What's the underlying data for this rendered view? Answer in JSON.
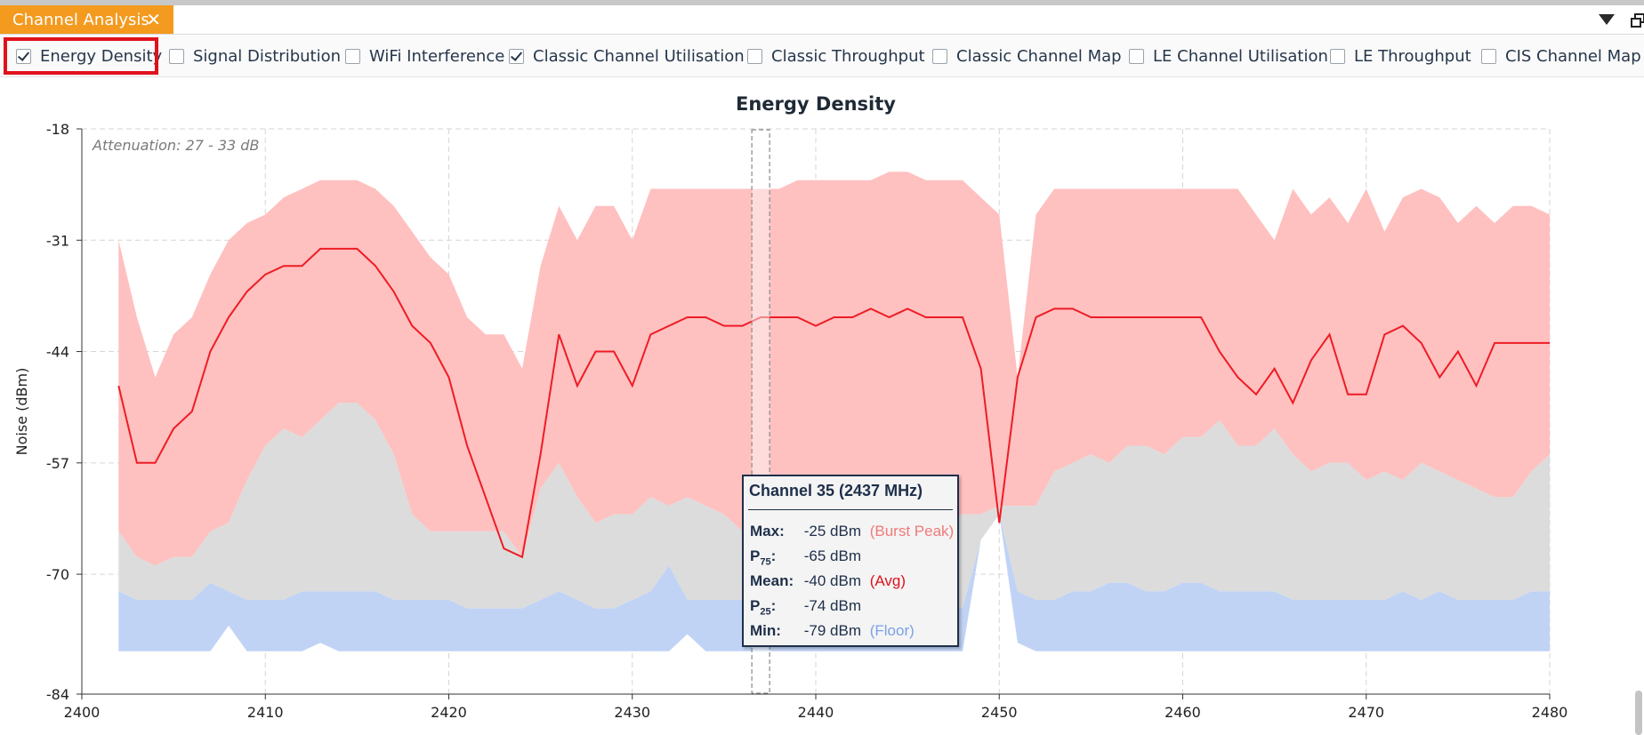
{
  "tab": {
    "title": "Channel Analysis",
    "close_glyph": "✕"
  },
  "toolbar": {
    "checkboxes": [
      {
        "label": "Energy Density",
        "checked": true
      },
      {
        "label": "Signal Distribution",
        "checked": false
      },
      {
        "label": "WiFi Interference",
        "checked": false
      },
      {
        "label": "Classic Channel Utilisation",
        "checked": true
      },
      {
        "label": "Classic Throughput",
        "checked": false
      },
      {
        "label": "Classic Channel Map",
        "checked": false
      },
      {
        "label": "LE Channel Utilisation",
        "checked": false
      },
      {
        "label": "LE Throughput",
        "checked": false
      },
      {
        "label": "CIS Channel Map",
        "checked": false
      }
    ]
  },
  "icons": {
    "menu": "dropdown-arrow-icon",
    "restore": "restore-window-icon",
    "close": "close-icon"
  },
  "colors": {
    "tab": "#f39a1f",
    "highlight": "#e0111b",
    "peak_band": "#ffc0c0",
    "p_band": "#dcdcdc",
    "floor_band": "#c0d3f5",
    "mean_line": "#ee1c24",
    "floor_text": "#7aa2e8",
    "peak_text": "#f07a7a"
  },
  "chart_data": {
    "type": "area",
    "title": "Energy Density",
    "xlabel": "",
    "ylabel": "Noise (dBm)",
    "xlim": [
      2400,
      2480
    ],
    "ylim": [
      -84,
      -18
    ],
    "xticks": [
      2400,
      2410,
      2420,
      2430,
      2440,
      2450,
      2460,
      2470,
      2480
    ],
    "yticks": [
      -84,
      -70,
      -57,
      -44,
      -31,
      -18
    ],
    "grid": true,
    "annotation": "Attenuation: 27 - 33 dB",
    "x": [
      2402,
      2403,
      2404,
      2405,
      2406,
      2407,
      2408,
      2409,
      2410,
      2411,
      2412,
      2413,
      2414,
      2415,
      2416,
      2417,
      2418,
      2419,
      2420,
      2421,
      2422,
      2423,
      2424,
      2425,
      2426,
      2427,
      2428,
      2429,
      2430,
      2431,
      2432,
      2433,
      2434,
      2435,
      2436,
      2437,
      2438,
      2439,
      2440,
      2441,
      2442,
      2443,
      2444,
      2445,
      2446,
      2447,
      2448,
      2449,
      2450,
      2451,
      2452,
      2453,
      2454,
      2455,
      2456,
      2457,
      2458,
      2459,
      2460,
      2461,
      2462,
      2463,
      2464,
      2465,
      2466,
      2467,
      2468,
      2469,
      2470,
      2471,
      2472,
      2473,
      2474,
      2475,
      2476,
      2477,
      2478,
      2479,
      2480
    ],
    "series": [
      {
        "name": "Max",
        "values": [
          -31,
          -40,
          -47,
          -42,
          -40,
          -35,
          -31,
          -29,
          -28,
          -26,
          -25,
          -24,
          -24,
          -24,
          -25,
          -27,
          -30,
          -33,
          -35,
          -40,
          -42,
          -42,
          -46,
          -34,
          -27,
          -31,
          -27,
          -27,
          -31,
          -25,
          -25,
          -25,
          -25,
          -25,
          -25,
          -25,
          -25,
          -24,
          -24,
          -24,
          -24,
          -24,
          -23,
          -23,
          -24,
          -24,
          -24,
          -26,
          -28,
          -47,
          -28,
          -25,
          -25,
          -25,
          -25,
          -25,
          -25,
          -25,
          -25,
          -25,
          -25,
          -25,
          -28,
          -31,
          -25,
          -28,
          -26,
          -29,
          -25,
          -30,
          -26,
          -25,
          -26,
          -29,
          -27,
          -29,
          -27,
          -27,
          -28
        ]
      },
      {
        "name": "P75",
        "values": [
          -65,
          -68,
          -69,
          -68,
          -68,
          -65,
          -64,
          -59,
          -55,
          -53,
          -54,
          -52,
          -50,
          -50,
          -52,
          -56,
          -63,
          -65,
          -65,
          -65,
          -65,
          -65,
          -68,
          -60,
          -57,
          -61,
          -64,
          -63,
          -63,
          -61,
          -62,
          -61,
          -62,
          -63,
          -65,
          -65,
          -64,
          -63,
          -63,
          -62,
          -62,
          -62,
          -62,
          -62,
          -63,
          -64,
          -63,
          -63,
          -62,
          -62,
          -62,
          -58,
          -57,
          -56,
          -57,
          -55,
          -55,
          -56,
          -54,
          -54,
          -52,
          -55,
          -55,
          -53,
          -56,
          -58,
          -57,
          -57,
          -59,
          -58,
          -59,
          -57,
          -58,
          -59,
          -60,
          -61,
          -61,
          -58,
          -56
        ]
      },
      {
        "name": "P25",
        "values": [
          -72,
          -73,
          -73,
          -73,
          -73,
          -71,
          -72,
          -73,
          -73,
          -73,
          -72,
          -72,
          -72,
          -72,
          -72,
          -73,
          -73,
          -73,
          -73,
          -74,
          -74,
          -74,
          -74,
          -73,
          -72,
          -73,
          -74,
          -74,
          -73,
          -72,
          -69,
          -73,
          -73,
          -73,
          -73,
          -74,
          -74,
          -73,
          -73,
          -73,
          -73,
          -73,
          -73,
          -73,
          -73,
          -73,
          -74,
          -66,
          -63,
          -72,
          -73,
          -73,
          -72,
          -72,
          -71,
          -71,
          -72,
          -72,
          -71,
          -71,
          -72,
          -72,
          -72,
          -72,
          -73,
          -73,
          -73,
          -73,
          -73,
          -73,
          -72,
          -73,
          -72,
          -73,
          -73,
          -73,
          -73,
          -72,
          -72
        ]
      },
      {
        "name": "Min",
        "values": [
          -79,
          -79,
          -79,
          -79,
          -79,
          -79,
          -76,
          -79,
          -79,
          -79,
          -79,
          -78,
          -79,
          -79,
          -79,
          -79,
          -79,
          -79,
          -79,
          -79,
          -79,
          -79,
          -79,
          -79,
          -79,
          -79,
          -79,
          -79,
          -79,
          -79,
          -79,
          -77,
          -79,
          -79,
          -79,
          -79,
          -79,
          -79,
          -79,
          -79,
          -79,
          -79,
          -79,
          -79,
          -79,
          -79,
          -79,
          -66,
          -63,
          -78,
          -79,
          -79,
          -79,
          -79,
          -79,
          -79,
          -79,
          -79,
          -79,
          -79,
          -79,
          -79,
          -79,
          -79,
          -79,
          -79,
          -79,
          -79,
          -79,
          -79,
          -79,
          -79,
          -79,
          -79,
          -79,
          -79,
          -79,
          -79,
          -79
        ]
      },
      {
        "name": "Mean",
        "values": [
          -48,
          -57,
          -57,
          -53,
          -51,
          -44,
          -40,
          -37,
          -35,
          -34,
          -34,
          -32,
          -32,
          -32,
          -34,
          -37,
          -41,
          -43,
          -47,
          -55,
          -61,
          -67,
          -68,
          -56,
          -42,
          -48,
          -44,
          -44,
          -48,
          -42,
          -41,
          -40,
          -40,
          -41,
          -41,
          -40,
          -40,
          -40,
          -41,
          -40,
          -40,
          -39,
          -40,
          -39,
          -40,
          -40,
          -40,
          -46,
          -64,
          -47,
          -40,
          -39,
          -39,
          -40,
          -40,
          -40,
          -40,
          -40,
          -40,
          -40,
          -44,
          -47,
          -49,
          -46,
          -50,
          -45,
          -42,
          -49,
          -49,
          -42,
          -41,
          -43,
          -47,
          -44,
          -48,
          -43,
          -43,
          -43,
          -43
        ]
      }
    ],
    "cursor_x": 2437,
    "tooltip": {
      "title": "Channel 35 (2437 MHz)",
      "rows": [
        {
          "label": "Max:",
          "value": "-25 dBm",
          "note": "(Burst Peak)"
        },
        {
          "label": "P75:",
          "label_main": "P",
          "label_sub": "75",
          "value": "-65 dBm",
          "note": ""
        },
        {
          "label": "Mean:",
          "value": "-40 dBm",
          "note": "(Avg)"
        },
        {
          "label": "P25:",
          "label_main": "P",
          "label_sub": "25",
          "value": "-74 dBm",
          "note": ""
        },
        {
          "label": "Min:",
          "value": "-79 dBm",
          "note": "(Floor)"
        }
      ]
    }
  }
}
